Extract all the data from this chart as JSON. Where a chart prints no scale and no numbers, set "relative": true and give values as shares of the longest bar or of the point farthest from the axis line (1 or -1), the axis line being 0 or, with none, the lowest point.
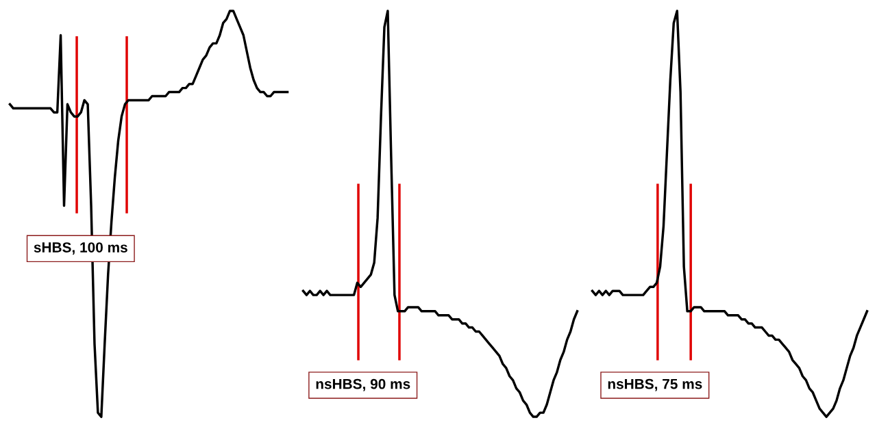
{
  "chart_data": [
    {
      "type": "line",
      "relative": true,
      "categories": [
        null,
        null,
        null,
        null,
        null,
        null,
        null,
        null,
        null,
        null,
        null,
        null,
        null,
        null,
        null,
        null,
        null,
        null,
        null,
        null,
        null,
        null,
        null,
        null,
        null,
        null,
        null,
        null,
        null,
        null,
        null,
        null,
        null,
        null,
        null,
        null,
        null,
        null,
        null,
        null,
        null,
        null,
        null,
        null,
        null,
        null,
        null,
        null,
        null,
        null,
        null,
        null,
        null,
        null,
        null,
        null,
        null,
        null,
        null,
        null,
        null,
        null,
        null,
        null,
        null,
        null,
        null,
        null,
        null,
        null,
        null,
        null,
        null,
        null,
        null,
        null,
        null,
        null,
        null,
        null,
        null,
        null,
        null
      ],
      "series": [
        {
          "color": "#000000",
          "values": [
            0.77,
            0.76,
            0.76,
            0.76,
            0.76,
            0.76,
            0.76,
            0.76,
            0.76,
            0.76,
            0.76,
            0.76,
            0.76,
            0.75,
            0.75,
            0.94,
            0.52,
            0.77,
            0.75,
            0.74,
            0.74,
            0.75,
            0.78,
            0.77,
            0.52,
            0.18,
            0.01,
            0,
            0.18,
            0.35,
            0.48,
            0.59,
            0.68,
            0.74,
            0.77,
            0.78,
            0.78,
            0.78,
            0.78,
            0.78,
            0.78,
            0.78,
            0.79,
            0.79,
            0.79,
            0.79,
            0.79,
            0.8,
            0.8,
            0.8,
            0.8,
            0.81,
            0.81,
            0.82,
            0.82,
            0.84,
            0.86,
            0.88,
            0.89,
            0.91,
            0.92,
            0.92,
            0.94,
            0.97,
            0.98,
            1,
            1,
            0.98,
            0.96,
            0.94,
            0.9,
            0.86,
            0.83,
            0.81,
            0.8,
            0.8,
            0.79,
            0.79,
            0.8,
            0.8,
            0.8,
            0.8,
            0.8
          ]
        }
      ],
      "annotations": [
        "sHBS, 100 ms"
      ]
    },
    {
      "type": "line",
      "relative": true,
      "categories": [
        null,
        null,
        null,
        null,
        null,
        null,
        null,
        null,
        null,
        null,
        null,
        null,
        null,
        null,
        null,
        null,
        null,
        null,
        null,
        null,
        null,
        null,
        null,
        null,
        null,
        null,
        null,
        null,
        null,
        null,
        null,
        null,
        null,
        null,
        null,
        null,
        null,
        null,
        null,
        null,
        null,
        null,
        null,
        null,
        null,
        null,
        null,
        null,
        null,
        null,
        null,
        null,
        null,
        null,
        null,
        null,
        null,
        null,
        null,
        null,
        null,
        null,
        null,
        null,
        null,
        null,
        null,
        null,
        null,
        null,
        null,
        null,
        null,
        null,
        null,
        null,
        null,
        null,
        null,
        null,
        null,
        null
      ],
      "series": [
        {
          "color": "#000000",
          "values": [
            0.31,
            0.3,
            0.31,
            0.3,
            0.3,
            0.31,
            0.3,
            0.31,
            0.3,
            0.3,
            0.3,
            0.3,
            0.3,
            0.3,
            0.3,
            0.3,
            0.33,
            0.32,
            0.33,
            0.34,
            0.35,
            0.38,
            0.49,
            0.74,
            0.96,
            1,
            0.64,
            0.3,
            0.26,
            0.26,
            0.26,
            0.27,
            0.27,
            0.27,
            0.27,
            0.26,
            0.26,
            0.26,
            0.26,
            0.26,
            0.25,
            0.25,
            0.25,
            0.25,
            0.24,
            0.24,
            0.24,
            0.23,
            0.23,
            0.22,
            0.22,
            0.21,
            0.21,
            0.2,
            0.19,
            0.18,
            0.17,
            0.16,
            0.15,
            0.13,
            0.12,
            0.1,
            0.09,
            0.07,
            0.06,
            0.04,
            0.03,
            0.01,
            0,
            0,
            0.01,
            0.01,
            0.03,
            0.06,
            0.09,
            0.11,
            0.14,
            0.16,
            0.19,
            0.21,
            0.24,
            0.26
          ]
        }
      ],
      "annotations": [
        "nsHBS, 90 ms"
      ]
    },
    {
      "type": "line",
      "relative": true,
      "categories": [
        null,
        null,
        null,
        null,
        null,
        null,
        null,
        null,
        null,
        null,
        null,
        null,
        null,
        null,
        null,
        null,
        null,
        null,
        null,
        null,
        null,
        null,
        null,
        null,
        null,
        null,
        null,
        null,
        null,
        null,
        null,
        null,
        null,
        null,
        null,
        null,
        null,
        null,
        null,
        null,
        null,
        null,
        null,
        null,
        null,
        null,
        null,
        null,
        null,
        null,
        null,
        null,
        null,
        null,
        null,
        null,
        null,
        null,
        null,
        null,
        null,
        null,
        null,
        null,
        null,
        null,
        null,
        null,
        null,
        null,
        null,
        null,
        null,
        null,
        null,
        null,
        null,
        null,
        null,
        null,
        null,
        null
      ],
      "series": [
        {
          "color": "#000000",
          "values": [
            0.31,
            0.3,
            0.31,
            0.3,
            0.31,
            0.3,
            0.31,
            0.31,
            0.31,
            0.3,
            0.3,
            0.3,
            0.3,
            0.3,
            0.3,
            0.3,
            0.31,
            0.32,
            0.32,
            0.33,
            0.37,
            0.47,
            0.65,
            0.83,
            0.97,
            1,
            0.8,
            0.37,
            0.26,
            0.26,
            0.27,
            0.27,
            0.27,
            0.26,
            0.26,
            0.26,
            0.26,
            0.26,
            0.26,
            0.26,
            0.25,
            0.25,
            0.25,
            0.25,
            0.24,
            0.24,
            0.23,
            0.23,
            0.22,
            0.22,
            0.22,
            0.21,
            0.2,
            0.2,
            0.19,
            0.19,
            0.18,
            0.17,
            0.16,
            0.14,
            0.13,
            0.12,
            0.1,
            0.09,
            0.07,
            0.06,
            0.04,
            0.02,
            0.01,
            0,
            0.01,
            0.02,
            0.04,
            0.07,
            0.09,
            0.12,
            0.15,
            0.17,
            0.2,
            0.22,
            0.24,
            0.26
          ]
        }
      ],
      "annotations": [
        "nsHBS, 75 ms"
      ]
    }
  ]
}
